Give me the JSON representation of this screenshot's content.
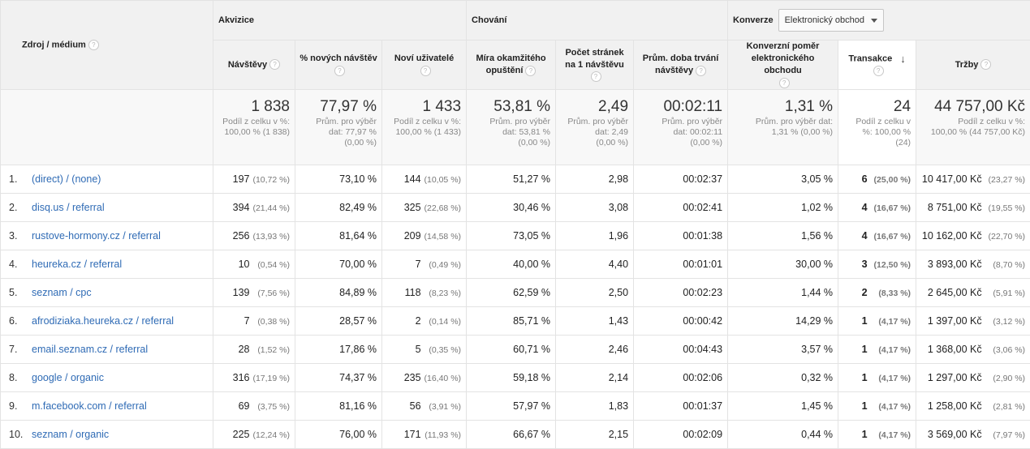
{
  "groups": {
    "akvizice": "Akvizice",
    "chovani": "Chování",
    "konverze": "Konverze",
    "konverze_select": "Elektronický obchod"
  },
  "columns": {
    "source": "Zdroj / médium",
    "visits": "Návštěvy",
    "new_visits_pct": "% nových návštěv",
    "new_users": "Noví uživatelé",
    "bounce_rate": [
      "Míra okamžitého",
      "opuštění"
    ],
    "pages_per_visit": [
      "Počet stránek",
      "na 1 návštěvu"
    ],
    "avg_duration": [
      "Prům. doba trvání",
      "návštěvy"
    ],
    "conversion_rate": [
      "Konverzní poměr",
      "elektronického obchodu"
    ],
    "transactions": "Transakce",
    "revenue": "Tržby"
  },
  "help_glyph": "?",
  "sort_glyph": "↓",
  "totals": {
    "visits": {
      "value": "1 838",
      "sub": [
        "Podíl z celku v %:",
        "100,00 % (1 838)"
      ]
    },
    "new_visits_pct": {
      "value": "77,97 %",
      "sub": [
        "Prům. pro výběr",
        "dat: 77,97 %",
        "(0,00 %)"
      ]
    },
    "new_users": {
      "value": "1 433",
      "sub": [
        "Podíl z celku v %:",
        "100,00 % (1 433)"
      ]
    },
    "bounce_rate": {
      "value": "53,81 %",
      "sub": [
        "Prům. pro výběr",
        "dat: 53,81 %",
        "(0,00 %)"
      ]
    },
    "pages_per_visit": {
      "value": "2,49",
      "sub": [
        "Prům. pro výběr",
        "dat: 2,49",
        "(0,00 %)"
      ]
    },
    "avg_duration": {
      "value": "00:02:11",
      "sub": [
        "Prům. pro výběr",
        "dat: 00:02:11",
        "(0,00 %)"
      ]
    },
    "conversion_rate": {
      "value": "1,31 %",
      "sub": [
        "Prům. pro výběr dat:",
        "1,31 % (0,00 %)"
      ]
    },
    "transactions": {
      "value": "24",
      "sub": [
        "Podíl z celku v",
        "%: 100,00 %",
        "(24)"
      ]
    },
    "revenue": {
      "value": "44 757,00 Kč",
      "sub": [
        "Podíl z celku v %:",
        "100,00 % (44 757,00 Kč)"
      ]
    }
  },
  "rows": [
    {
      "n": "1.",
      "source": "(direct) / (none)",
      "visits": "197",
      "visits_pct": "(10,72 %)",
      "new_pct": "73,10 %",
      "new_users": "144",
      "new_users_pct": "(10,05 %)",
      "bounce": "51,27 %",
      "pages": "2,98",
      "duration": "00:02:37",
      "conv": "3,05 %",
      "trans": "6",
      "trans_pct": "(25,00 %)",
      "revenue": "10 417,00 Kč",
      "revenue_pct": "(23,27 %)"
    },
    {
      "n": "2.",
      "source": "disq.us / referral",
      "visits": "394",
      "visits_pct": "(21,44 %)",
      "new_pct": "82,49 %",
      "new_users": "325",
      "new_users_pct": "(22,68 %)",
      "bounce": "30,46 %",
      "pages": "3,08",
      "duration": "00:02:41",
      "conv": "1,02 %",
      "trans": "4",
      "trans_pct": "(16,67 %)",
      "revenue": "8 751,00 Kč",
      "revenue_pct": "(19,55 %)"
    },
    {
      "n": "3.",
      "source": "rustove-hormony.cz / referral",
      "visits": "256",
      "visits_pct": "(13,93 %)",
      "new_pct": "81,64 %",
      "new_users": "209",
      "new_users_pct": "(14,58 %)",
      "bounce": "73,05 %",
      "pages": "1,96",
      "duration": "00:01:38",
      "conv": "1,56 %",
      "trans": "4",
      "trans_pct": "(16,67 %)",
      "revenue": "10 162,00 Kč",
      "revenue_pct": "(22,70 %)"
    },
    {
      "n": "4.",
      "source": "heureka.cz / referral",
      "visits": "10",
      "visits_pct": "(0,54 %)",
      "new_pct": "70,00 %",
      "new_users": "7",
      "new_users_pct": "(0,49 %)",
      "bounce": "40,00 %",
      "pages": "4,40",
      "duration": "00:01:01",
      "conv": "30,00 %",
      "trans": "3",
      "trans_pct": "(12,50 %)",
      "revenue": "3 893,00 Kč",
      "revenue_pct": "(8,70 %)"
    },
    {
      "n": "5.",
      "source": "seznam / cpc",
      "visits": "139",
      "visits_pct": "(7,56 %)",
      "new_pct": "84,89 %",
      "new_users": "118",
      "new_users_pct": "(8,23 %)",
      "bounce": "62,59 %",
      "pages": "2,50",
      "duration": "00:02:23",
      "conv": "1,44 %",
      "trans": "2",
      "trans_pct": "(8,33 %)",
      "revenue": "2 645,00 Kč",
      "revenue_pct": "(5,91 %)"
    },
    {
      "n": "6.",
      "source": "afrodiziaka.heureka.cz / referral",
      "visits": "7",
      "visits_pct": "(0,38 %)",
      "new_pct": "28,57 %",
      "new_users": "2",
      "new_users_pct": "(0,14 %)",
      "bounce": "85,71 %",
      "pages": "1,43",
      "duration": "00:00:42",
      "conv": "14,29 %",
      "trans": "1",
      "trans_pct": "(4,17 %)",
      "revenue": "1 397,00 Kč",
      "revenue_pct": "(3,12 %)"
    },
    {
      "n": "7.",
      "source": "email.seznam.cz / referral",
      "visits": "28",
      "visits_pct": "(1,52 %)",
      "new_pct": "17,86 %",
      "new_users": "5",
      "new_users_pct": "(0,35 %)",
      "bounce": "60,71 %",
      "pages": "2,46",
      "duration": "00:04:43",
      "conv": "3,57 %",
      "trans": "1",
      "trans_pct": "(4,17 %)",
      "revenue": "1 368,00 Kč",
      "revenue_pct": "(3,06 %)"
    },
    {
      "n": "8.",
      "source": "google / organic",
      "visits": "316",
      "visits_pct": "(17,19 %)",
      "new_pct": "74,37 %",
      "new_users": "235",
      "new_users_pct": "(16,40 %)",
      "bounce": "59,18 %",
      "pages": "2,14",
      "duration": "00:02:06",
      "conv": "0,32 %",
      "trans": "1",
      "trans_pct": "(4,17 %)",
      "revenue": "1 297,00 Kč",
      "revenue_pct": "(2,90 %)"
    },
    {
      "n": "9.",
      "source": "m.facebook.com / referral",
      "visits": "69",
      "visits_pct": "(3,75 %)",
      "new_pct": "81,16 %",
      "new_users": "56",
      "new_users_pct": "(3,91 %)",
      "bounce": "57,97 %",
      "pages": "1,83",
      "duration": "00:01:37",
      "conv": "1,45 %",
      "trans": "1",
      "trans_pct": "(4,17 %)",
      "revenue": "1 258,00 Kč",
      "revenue_pct": "(2,81 %)"
    },
    {
      "n": "10.",
      "source": "seznam / organic",
      "visits": "225",
      "visits_pct": "(12,24 %)",
      "new_pct": "76,00 %",
      "new_users": "171",
      "new_users_pct": "(11,93 %)",
      "bounce": "66,67 %",
      "pages": "2,15",
      "duration": "00:02:09",
      "conv": "0,44 %",
      "trans": "1",
      "trans_pct": "(4,17 %)",
      "revenue": "3 569,00 Kč",
      "revenue_pct": "(7,97 %)"
    }
  ]
}
